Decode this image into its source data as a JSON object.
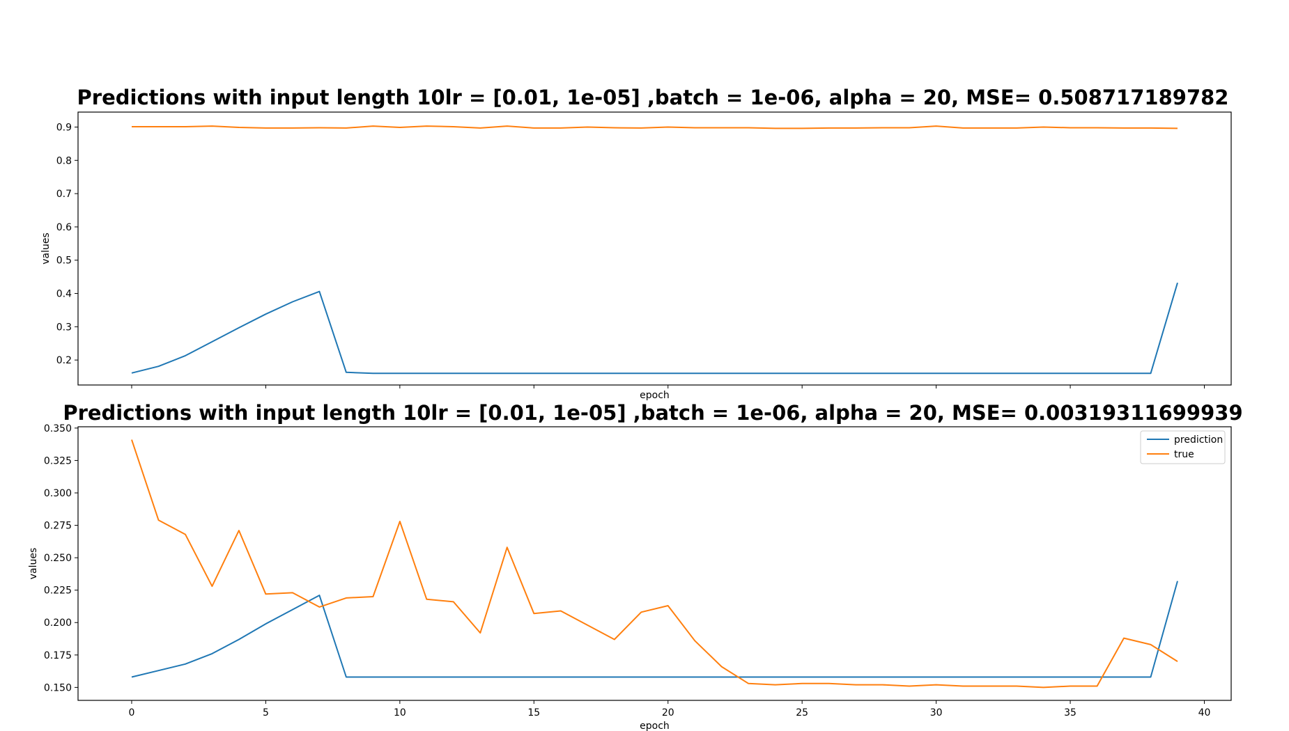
{
  "colors": {
    "prediction": "#1f77b4",
    "true": "#ff7f0e",
    "axes": "#000000",
    "background": "#ffffff"
  },
  "chart_data": [
    {
      "type": "line",
      "title": "Predictions with input length 10lr = [0.01, 1e-05] ,batch = 1e-06, alpha = 20, MSE= 0.508717189782",
      "xlabel": "epoch",
      "ylabel": "values",
      "xlim": [
        -2,
        41
      ],
      "ylim": [
        0.125,
        0.945
      ],
      "xticks": [
        0,
        5,
        10,
        15,
        20,
        25,
        30,
        35,
        40
      ],
      "xtick_labels_visible": false,
      "yticks": [
        0.2,
        0.3,
        0.4,
        0.5,
        0.6,
        0.7,
        0.8,
        0.9
      ],
      "ytick_labels": [
        "0.2",
        "0.3",
        "0.4",
        "0.5",
        "0.6",
        "0.7",
        "0.8",
        "0.9"
      ],
      "grid": false,
      "legend": null,
      "x": [
        0,
        1,
        2,
        3,
        4,
        5,
        6,
        7,
        8,
        9,
        10,
        11,
        12,
        13,
        14,
        15,
        16,
        17,
        18,
        19,
        20,
        21,
        22,
        23,
        24,
        25,
        26,
        27,
        28,
        29,
        30,
        31,
        32,
        33,
        34,
        35,
        36,
        37,
        38,
        39
      ],
      "series": [
        {
          "name": "prediction",
          "color": "#1f77b4",
          "values": [
            0.161,
            0.181,
            0.213,
            0.255,
            0.297,
            0.338,
            0.375,
            0.406,
            0.163,
            0.16,
            0.16,
            0.16,
            0.16,
            0.16,
            0.16,
            0.16,
            0.16,
            0.16,
            0.16,
            0.16,
            0.16,
            0.16,
            0.16,
            0.16,
            0.16,
            0.16,
            0.16,
            0.16,
            0.16,
            0.16,
            0.16,
            0.16,
            0.16,
            0.16,
            0.16,
            0.16,
            0.16,
            0.16,
            0.16,
            0.432
          ]
        },
        {
          "name": "true",
          "color": "#ff7f0e",
          "values": [
            0.901,
            0.901,
            0.901,
            0.903,
            0.899,
            0.897,
            0.897,
            0.898,
            0.897,
            0.903,
            0.899,
            0.903,
            0.901,
            0.897,
            0.903,
            0.897,
            0.897,
            0.9,
            0.898,
            0.897,
            0.9,
            0.898,
            0.898,
            0.898,
            0.896,
            0.896,
            0.897,
            0.897,
            0.898,
            0.898,
            0.903,
            0.897,
            0.897,
            0.897,
            0.9,
            0.898,
            0.898,
            0.897,
            0.897,
            0.896
          ]
        }
      ]
    },
    {
      "type": "line",
      "title": "Predictions with input length 10lr = [0.01, 1e-05] ,batch = 1e-06, alpha = 20, MSE= 0.00319311699939",
      "xlabel": "epoch",
      "ylabel": "values",
      "xlim": [
        -2,
        41
      ],
      "ylim": [
        0.14,
        0.351
      ],
      "xticks": [
        0,
        5,
        10,
        15,
        20,
        25,
        30,
        35,
        40
      ],
      "xtick_labels": [
        "0",
        "5",
        "10",
        "15",
        "20",
        "25",
        "30",
        "35",
        "40"
      ],
      "yticks": [
        0.15,
        0.175,
        0.2,
        0.225,
        0.25,
        0.275,
        0.3,
        0.325,
        0.35
      ],
      "ytick_labels": [
        "0.150",
        "0.175",
        "0.200",
        "0.225",
        "0.250",
        "0.275",
        "0.300",
        "0.325",
        "0.350"
      ],
      "grid": false,
      "legend": {
        "position": "top-right",
        "entries": [
          "prediction",
          "true"
        ]
      },
      "x": [
        0,
        1,
        2,
        3,
        4,
        5,
        6,
        7,
        8,
        9,
        10,
        11,
        12,
        13,
        14,
        15,
        16,
        17,
        18,
        19,
        20,
        21,
        22,
        23,
        24,
        25,
        26,
        27,
        28,
        29,
        30,
        31,
        32,
        33,
        34,
        35,
        36,
        37,
        38,
        39
      ],
      "series": [
        {
          "name": "prediction",
          "color": "#1f77b4",
          "values": [
            0.158,
            0.163,
            0.168,
            0.176,
            0.187,
            0.199,
            0.21,
            0.221,
            0.158,
            0.158,
            0.158,
            0.158,
            0.158,
            0.158,
            0.158,
            0.158,
            0.158,
            0.158,
            0.158,
            0.158,
            0.158,
            0.158,
            0.158,
            0.158,
            0.158,
            0.158,
            0.158,
            0.158,
            0.158,
            0.158,
            0.158,
            0.158,
            0.158,
            0.158,
            0.158,
            0.158,
            0.158,
            0.158,
            0.158,
            0.232
          ]
        },
        {
          "name": "true",
          "color": "#ff7f0e",
          "values": [
            0.341,
            0.279,
            0.268,
            0.228,
            0.271,
            0.222,
            0.223,
            0.212,
            0.219,
            0.22,
            0.278,
            0.218,
            0.216,
            0.192,
            0.258,
            0.207,
            0.209,
            0.198,
            0.187,
            0.208,
            0.213,
            0.186,
            0.166,
            0.153,
            0.152,
            0.153,
            0.153,
            0.152,
            0.152,
            0.151,
            0.152,
            0.151,
            0.151,
            0.151,
            0.15,
            0.151,
            0.151,
            0.188,
            0.183,
            0.17
          ]
        }
      ]
    }
  ]
}
